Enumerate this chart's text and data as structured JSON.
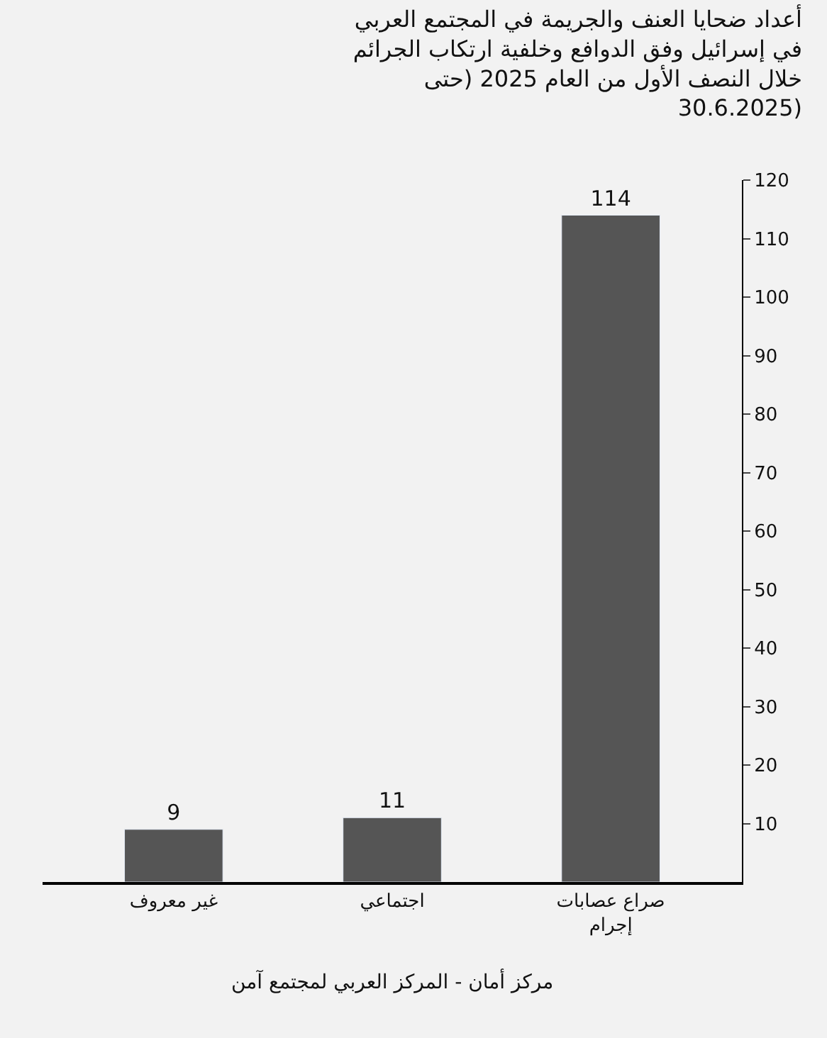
{
  "chart_data": {
    "type": "bar",
    "title": "أعداد ضحايا العنف والجريمة في المجتمع العربي في إسرائيل وفق الدوافع وخلفية ارتكاب الجرائم خلال النصف الأول من العام 2025 (حتى 30.6.2025)",
    "categories": [
      "غير معروف",
      "اجتماعي",
      "صراع عصابات إجرام"
    ],
    "values": [
      9,
      11,
      114
    ],
    "color": "#555555",
    "data_labels": true,
    "ylim": [
      0,
      120
    ],
    "yticks": [
      10,
      20,
      30,
      40,
      50,
      60,
      70,
      80,
      90,
      100,
      110,
      120
    ],
    "grid": false,
    "annotations": [
      "مركز أمان - المركز العربي لمجتمع آمن"
    ]
  }
}
